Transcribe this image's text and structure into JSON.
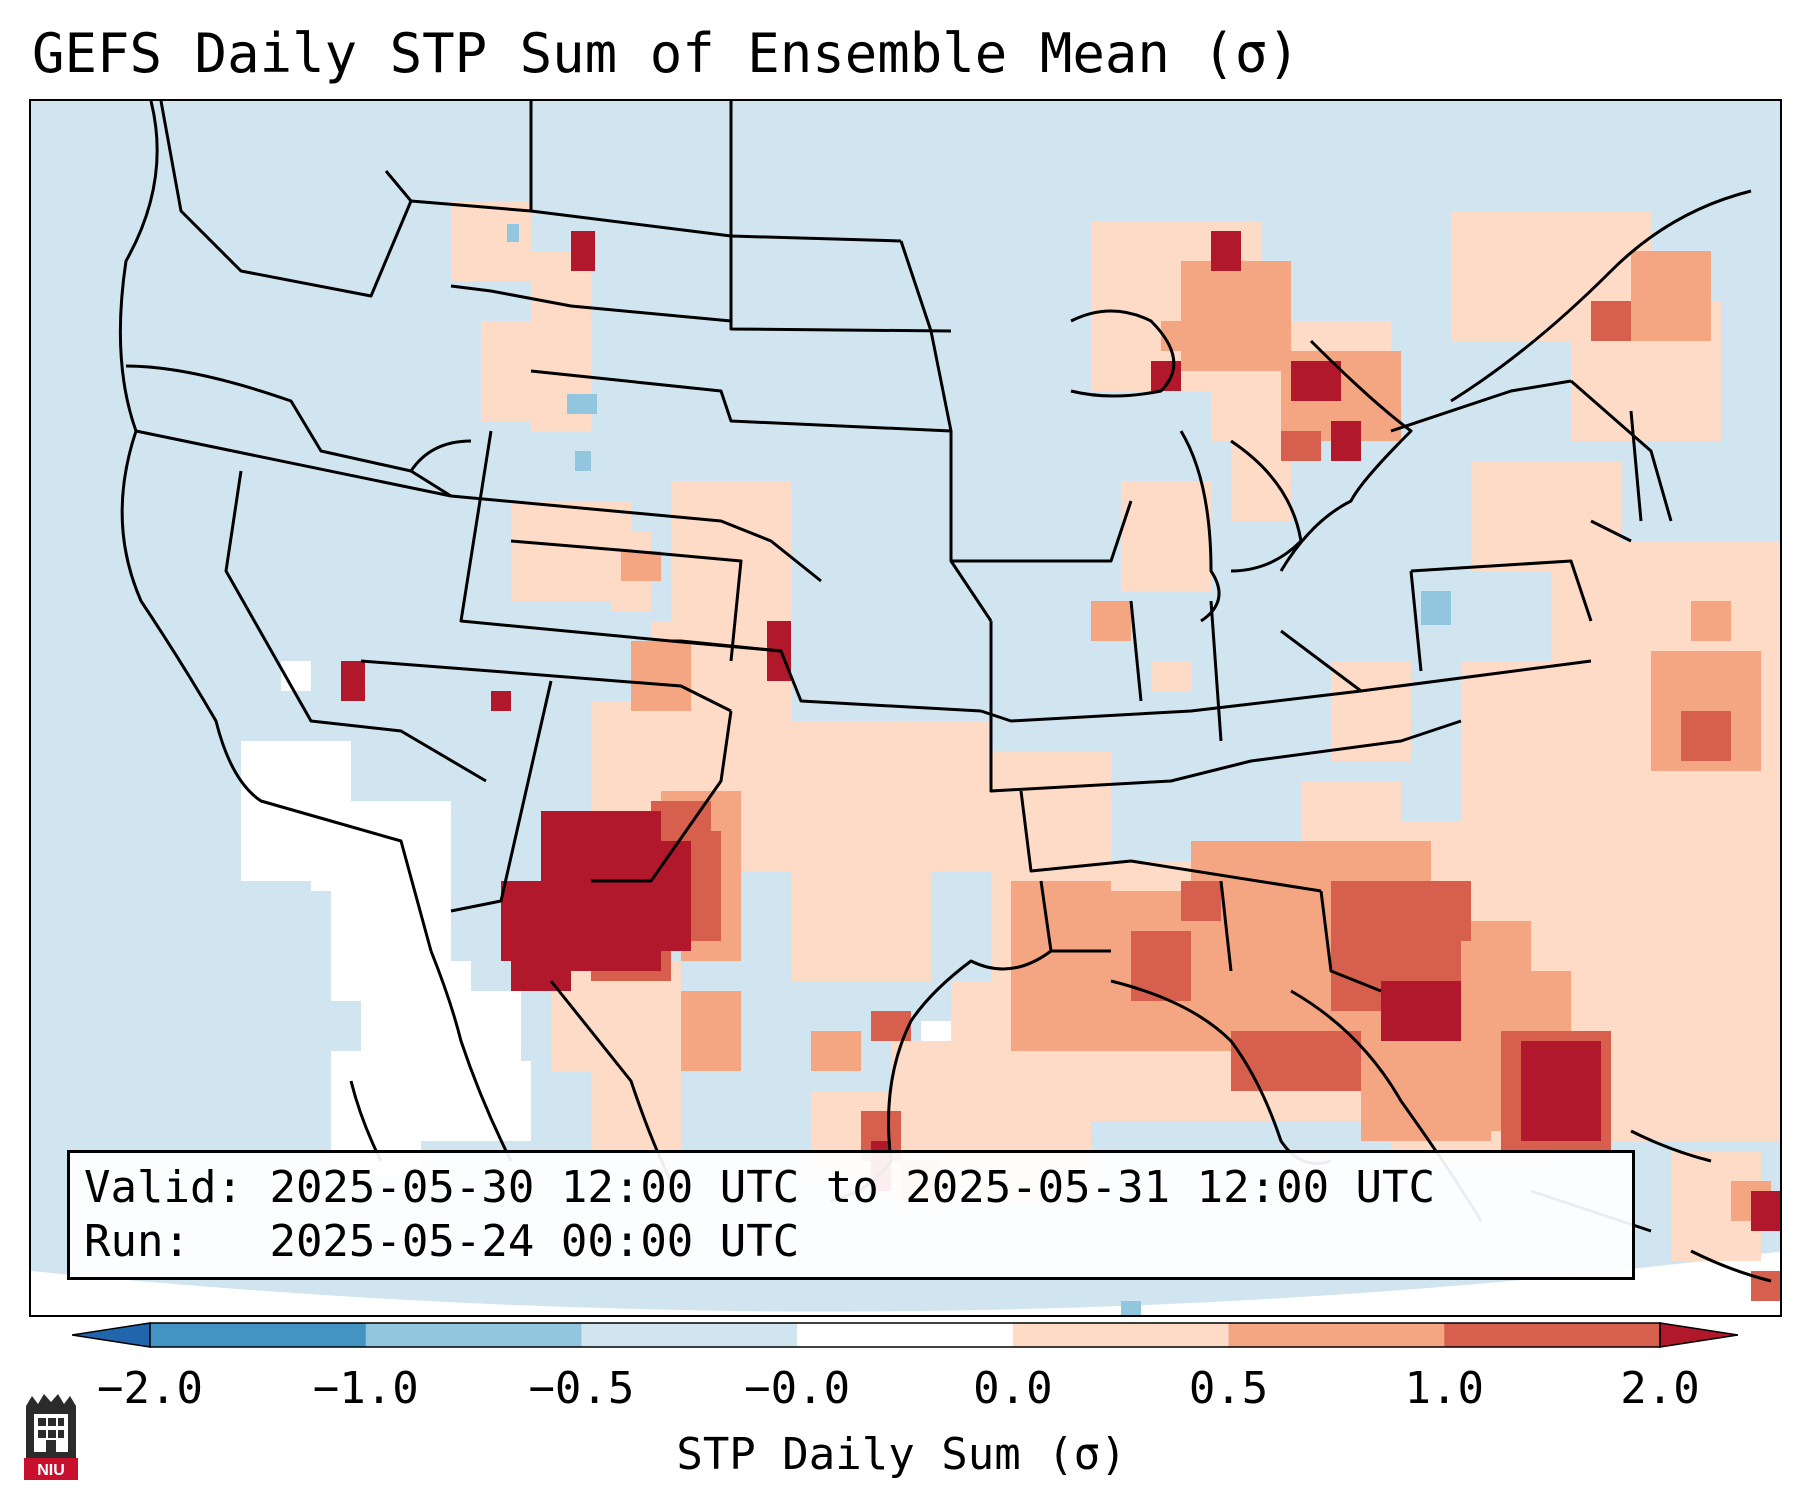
{
  "title": "GEFS Daily STP Sum of Ensemble Mean (σ)",
  "info": {
    "valid_label": "Valid:",
    "valid_value": "2025-05-30 12:00 UTC to 2025-05-31 12:00 UTC",
    "run_label": "Run:",
    "run_value": "2025-05-24 00:00 UTC"
  },
  "colorbar": {
    "label": "STP Daily Sum (σ)",
    "ticks": [
      "−2.0",
      "−1.0",
      "−0.5",
      "−0.0",
      "0.0",
      "0.5",
      "1.0",
      "2.0"
    ],
    "bins": [
      {
        "from": -2.0,
        "to": -1.0,
        "color": "#4393c3"
      },
      {
        "from": -1.0,
        "to": -0.5,
        "color": "#92c5de"
      },
      {
        "from": -0.5,
        "to": -0.0,
        "color": "#d1e5f0"
      },
      {
        "from": -0.0,
        "to": 0.0,
        "color": "#ffffff"
      },
      {
        "from": 0.0,
        "to": 0.5,
        "color": "#fddbc7"
      },
      {
        "from": 0.5,
        "to": 1.0,
        "color": "#f4a582"
      },
      {
        "from": 1.0,
        "to": 2.0,
        "color": "#d6604d"
      }
    ],
    "under_color": "#2166ac",
    "over_color": "#b2182b"
  },
  "colors": {
    "background": "#d1e5f0",
    "neutral": "#ffffff",
    "light": "#fddbc7",
    "medium": "#f4a582",
    "strong": "#d6604d",
    "extreme": "#b2182b",
    "weak_negative": "#92c5de",
    "borders": "#000000"
  },
  "logo_text": "NIU"
}
